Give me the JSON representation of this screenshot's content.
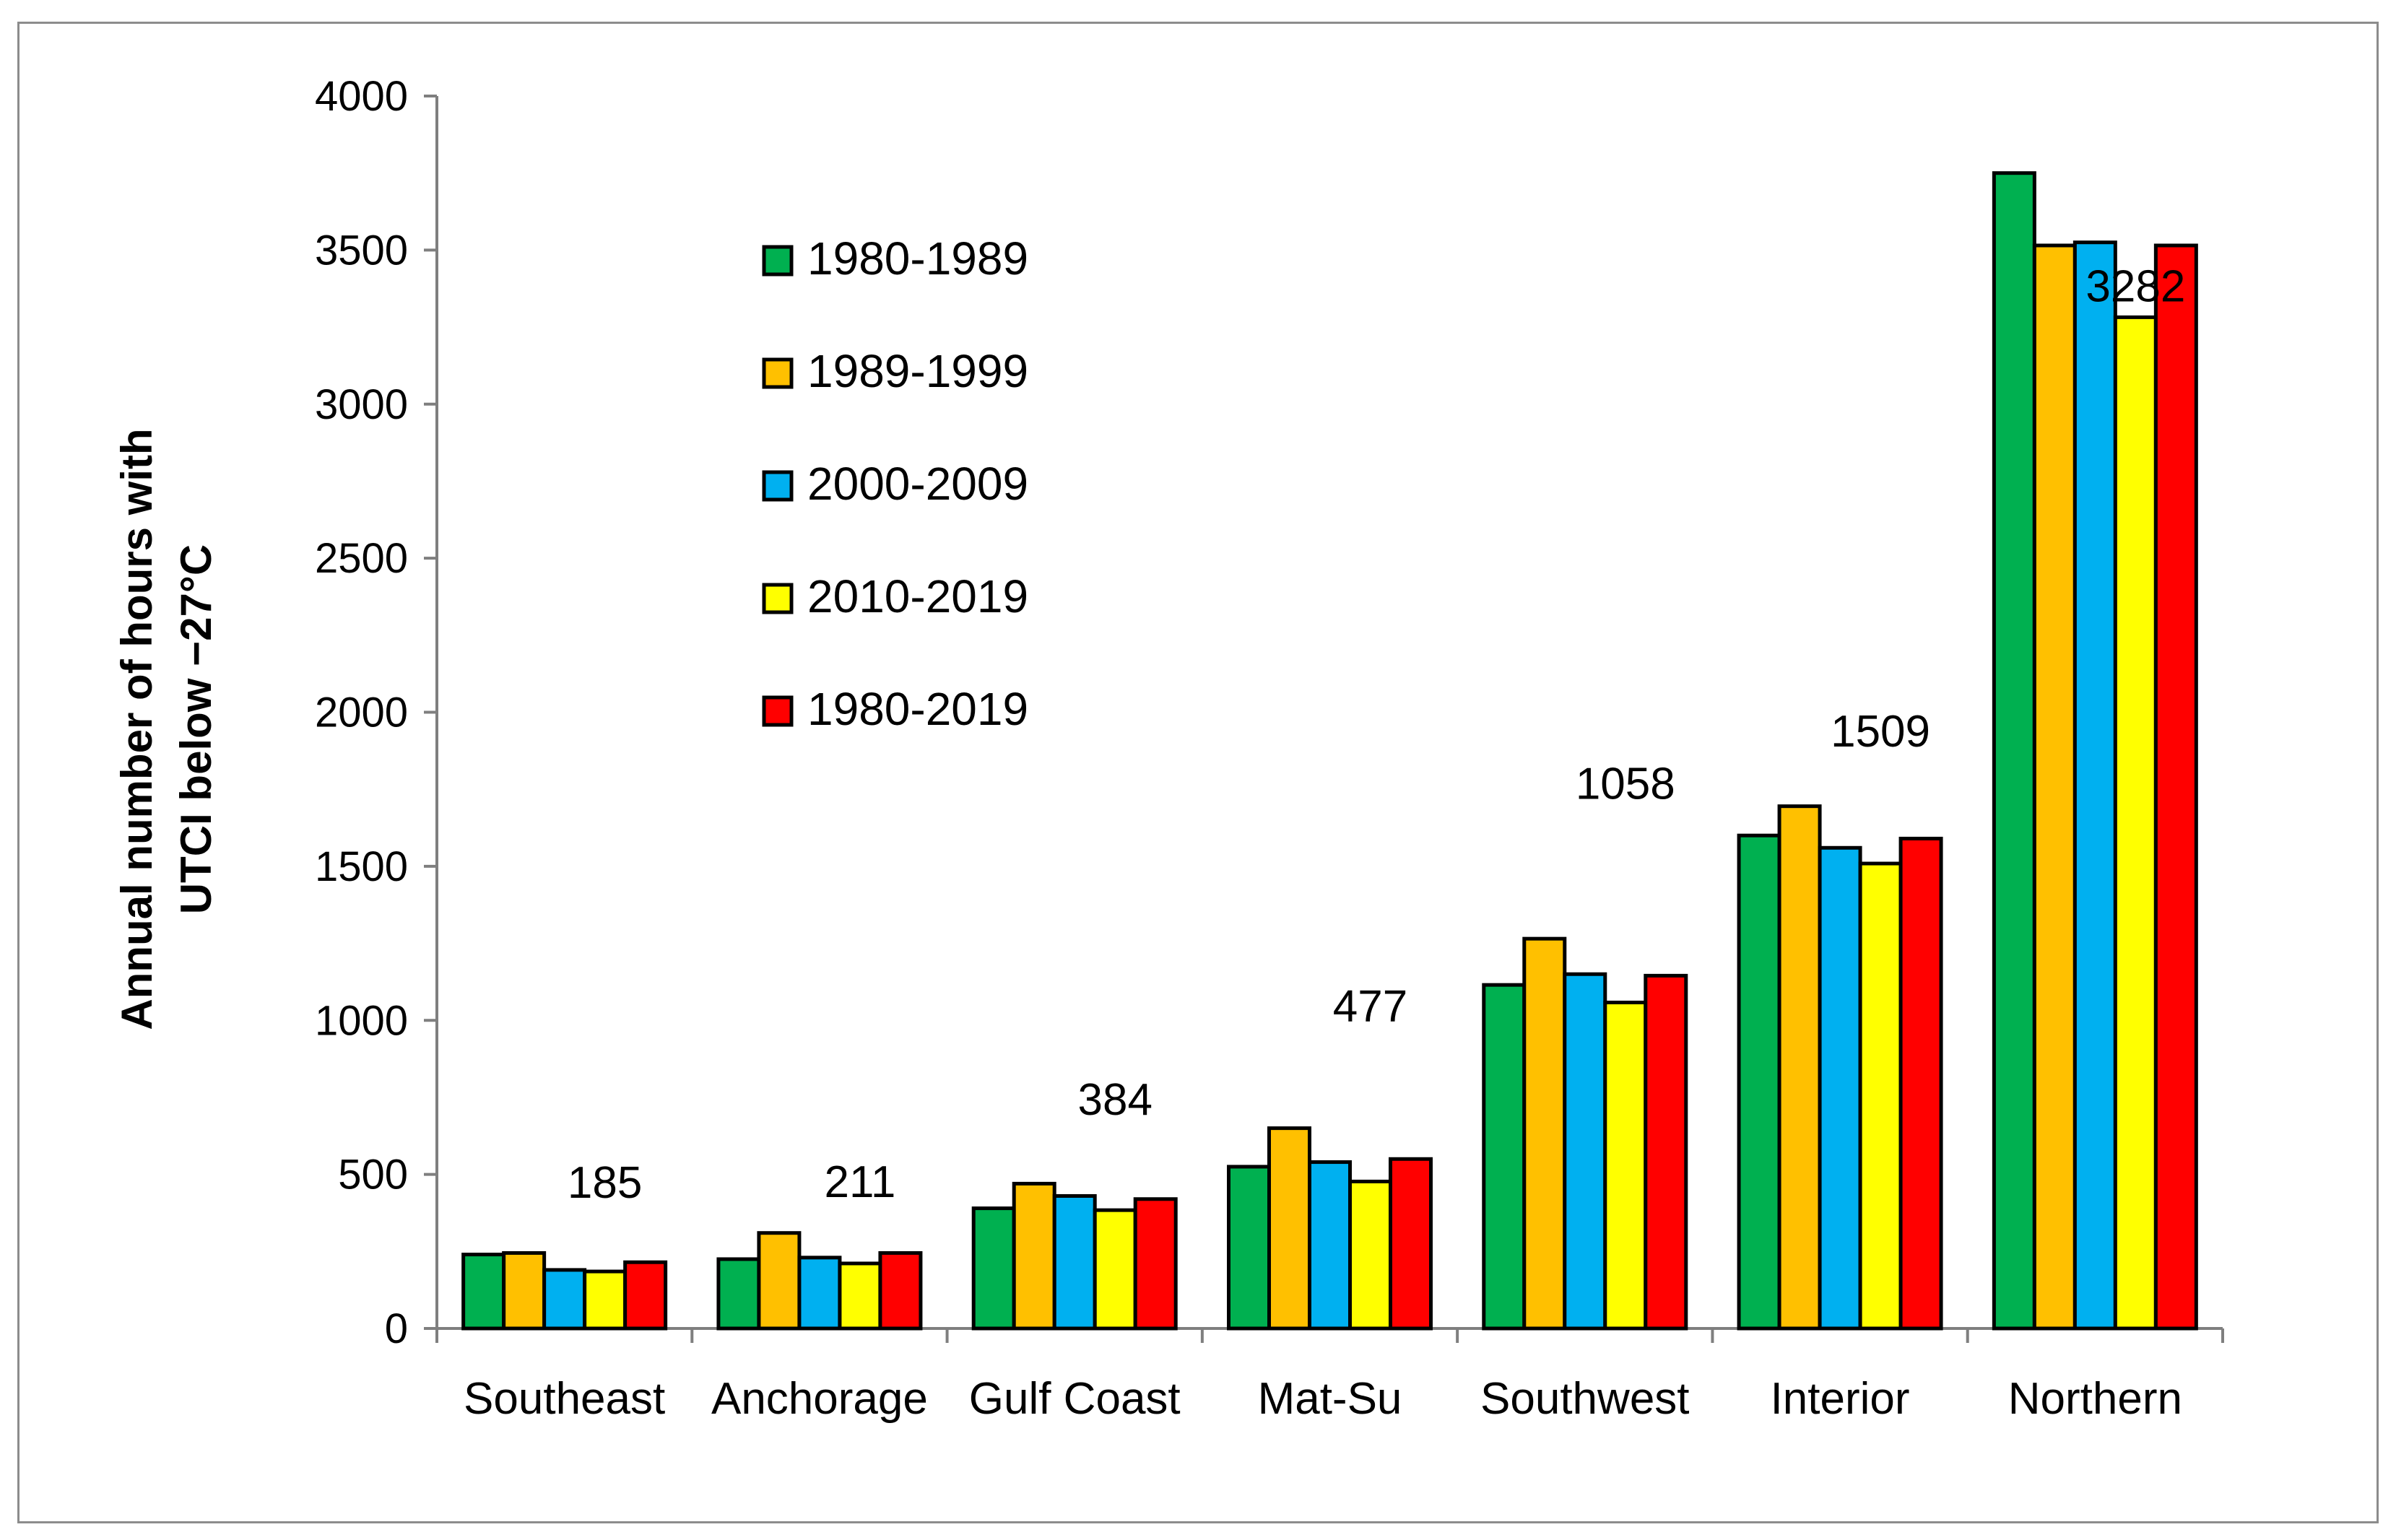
{
  "chart_data": {
    "type": "bar",
    "title": "",
    "ylabel_lines": [
      "Annual number of hours with",
      "UTCI below −27°C"
    ],
    "xlabel": "",
    "ylim": [
      0,
      4000
    ],
    "yticks": [
      0,
      500,
      1000,
      1500,
      2000,
      2500,
      3000,
      3500,
      4000
    ],
    "categories": [
      "Southeast",
      "Anchorage",
      "Gulf Coast",
      "Mat-Su",
      "Southwest",
      "Interior",
      "Northern"
    ],
    "series": [
      {
        "name": "1980-1989",
        "color": "#00b050",
        "values": [
          240,
          225,
          390,
          525,
          1115,
          1600,
          3750
        ]
      },
      {
        "name": "1989-1999",
        "color": "#ffc000",
        "values": [
          245,
          310,
          470,
          650,
          1265,
          1695,
          3515
        ]
      },
      {
        "name": "2000-2009",
        "color": "#00b0f0",
        "values": [
          190,
          230,
          430,
          540,
          1150,
          1560,
          3525
        ]
      },
      {
        "name": "2010-2019",
        "color": "#ffff00",
        "values": [
          185,
          211,
          384,
          477,
          1058,
          1509,
          3282
        ]
      },
      {
        "name": "1980-2019",
        "color": "#ff0000",
        "values": [
          215,
          245,
          420,
          550,
          1145,
          1590,
          3515
        ]
      }
    ],
    "annotations": [
      "185",
      "211",
      "384",
      "477",
      "1058",
      "1509",
      "3282"
    ],
    "legend_position": "upper-left inside plot",
    "grid": false
  }
}
